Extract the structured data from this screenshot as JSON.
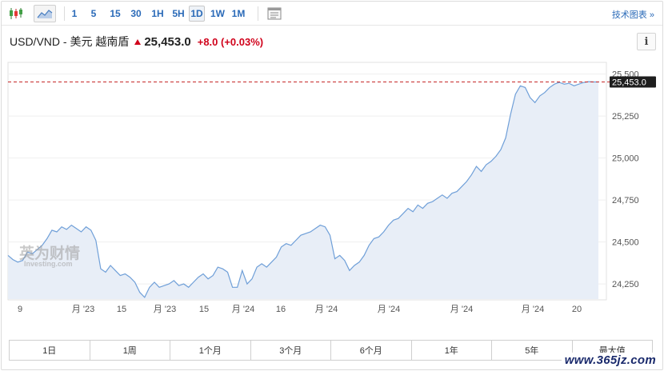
{
  "toolbar": {
    "chart_type_icons": [
      "candlestick-icon",
      "area-chart-icon"
    ],
    "intervals": [
      "1",
      "5",
      "15",
      "30",
      "1H",
      "5H",
      "1D",
      "1W",
      "1M"
    ],
    "active_interval": "1D",
    "settings_icon": "chart-settings-icon",
    "tech_link": "技术图表 »"
  },
  "header": {
    "pair": "USD/VND - 美元 越南盾",
    "direction_icon": "arrow-up-icon",
    "price": "25,453.0",
    "change": "+8.0 (+0.03%)",
    "up_color": "#d0021b",
    "info_label": "i"
  },
  "chart_data": {
    "type": "area",
    "y_ticks": [
      "25,500",
      "25,250",
      "25,000",
      "24,750",
      "24,500",
      "24,250"
    ],
    "y_tick_values": [
      25500,
      25250,
      25000,
      24750,
      24500,
      24250
    ],
    "x_tick_labels": [
      "9",
      "月 '23",
      "15",
      "月 '23",
      "15",
      "月 '24",
      "16",
      "月 '24",
      "月 '24",
      "月 '24",
      "月 '24",
      "20"
    ],
    "ylim": [
      24160,
      25560
    ],
    "current_price": 25453.0,
    "current_price_label": "25,453.0",
    "watermark_brand": "英为财情",
    "watermark_sub": "Investing.com",
    "line_color": "#6f9fd8",
    "fill_color": "#e8eef7",
    "ref_line_color": "#c62828",
    "values": [
      24420,
      24395,
      24380,
      24390,
      24440,
      24430,
      24455,
      24480,
      24520,
      24570,
      24560,
      24590,
      24575,
      24600,
      24580,
      24560,
      24590,
      24570,
      24510,
      24340,
      24320,
      24360,
      24330,
      24300,
      24310,
      24290,
      24260,
      24200,
      24170,
      24230,
      24260,
      24230,
      24240,
      24250,
      24270,
      24240,
      24250,
      24230,
      24260,
      24290,
      24310,
      24280,
      24300,
      24350,
      24340,
      24320,
      24230,
      24230,
      24330,
      24250,
      24280,
      24350,
      24370,
      24350,
      24380,
      24410,
      24470,
      24490,
      24480,
      24510,
      24540,
      24550,
      24560,
      24580,
      24600,
      24590,
      24540,
      24400,
      24420,
      24390,
      24330,
      24360,
      24380,
      24420,
      24480,
      24520,
      24530,
      24560,
      24600,
      24630,
      24640,
      24670,
      24700,
      24680,
      24720,
      24700,
      24730,
      24740,
      24760,
      24780,
      24760,
      24790,
      24800,
      24830,
      24860,
      24900,
      24950,
      24920,
      24960,
      24980,
      25010,
      25050,
      25120,
      25260,
      25380,
      25430,
      25420,
      25360,
      25330,
      25370,
      25390,
      25420,
      25440,
      25450,
      25440,
      25445,
      25430,
      25440,
      25450,
      25455,
      25453,
      25453
    ]
  },
  "ranges": [
    "1日",
    "1周",
    "1个月",
    "3个月",
    "6个月",
    "1年",
    "5年",
    "最大值"
  ],
  "site_watermark": "www.365jz.com"
}
